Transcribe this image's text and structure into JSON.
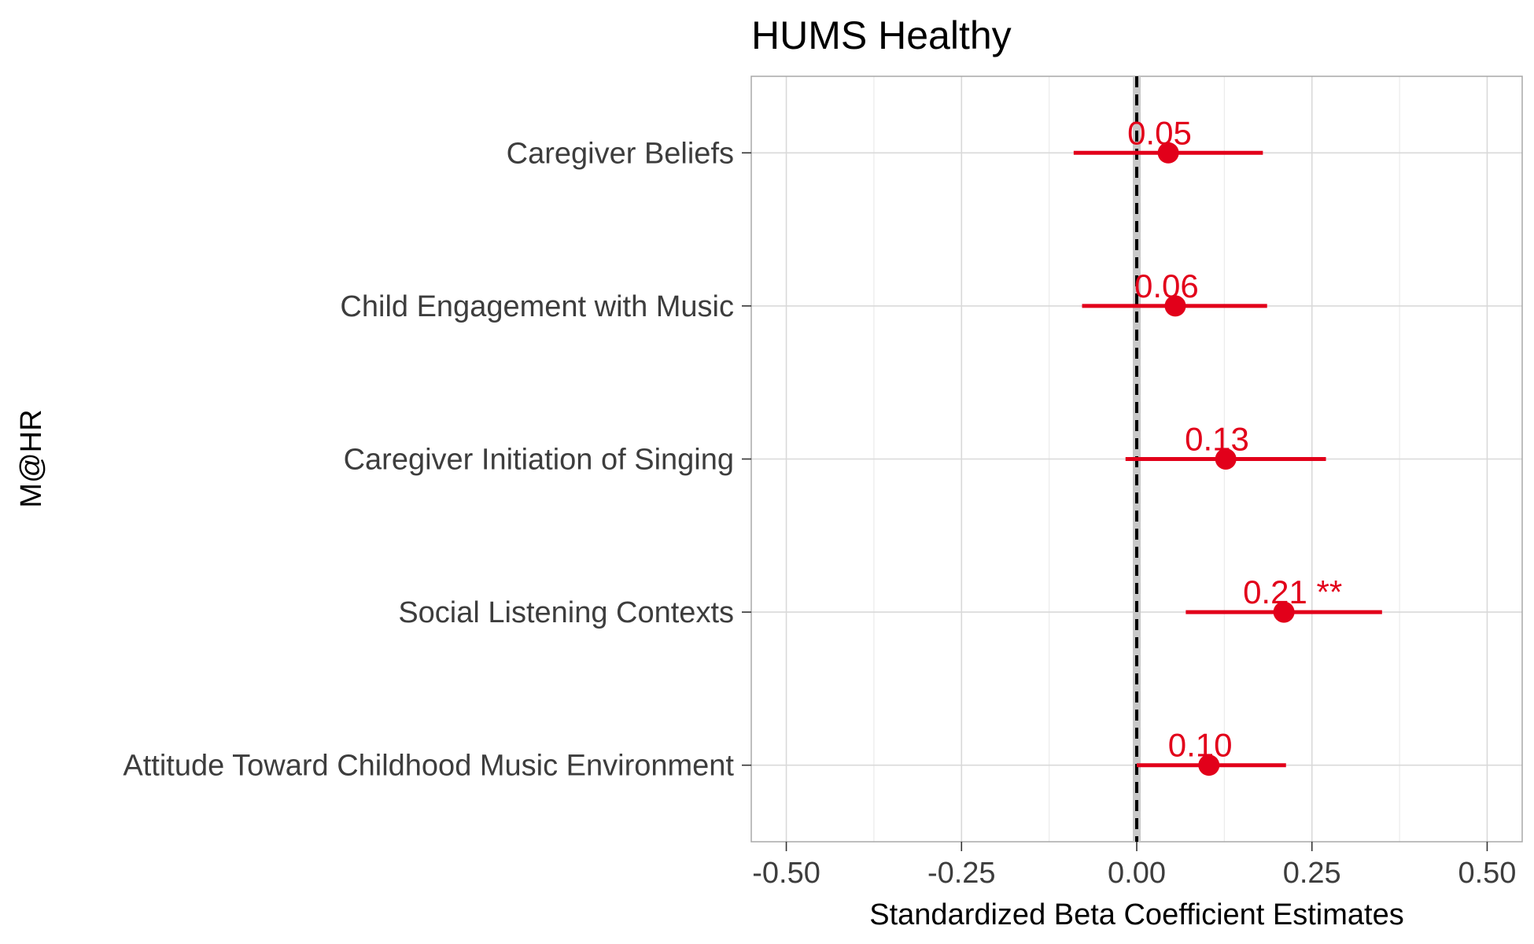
{
  "chart_data": {
    "type": "forest",
    "title": "HUMS Healthy",
    "ylabel": "M@HR",
    "xlabel": "Standardized Beta Coefficient Estimates",
    "xlim": [
      -0.55,
      0.55
    ],
    "x_ticks": [
      -0.5,
      -0.25,
      0.0,
      0.25,
      0.5
    ],
    "x_tick_labels": [
      "-0.50",
      "-0.25",
      "0.00",
      "0.25",
      "0.50"
    ],
    "reference_line": 0,
    "grid": true,
    "point_color": "#e2001a",
    "categories": [
      "Caregiver Beliefs",
      "Child Engagement with Music",
      "Caregiver Initiation of Singing",
      "Social Listening Contexts",
      "Attitude Toward Childhood Music Environment"
    ],
    "estimates": [
      0.045,
      0.055,
      0.127,
      0.21,
      0.103
    ],
    "ci_low": [
      -0.09,
      -0.078,
      -0.016,
      0.07,
      0.0
    ],
    "ci_high": [
      0.18,
      0.186,
      0.27,
      0.35,
      0.213
    ],
    "labels": [
      "0.05",
      "0.06",
      "0.13",
      "0.21 **",
      "0.10"
    ]
  }
}
